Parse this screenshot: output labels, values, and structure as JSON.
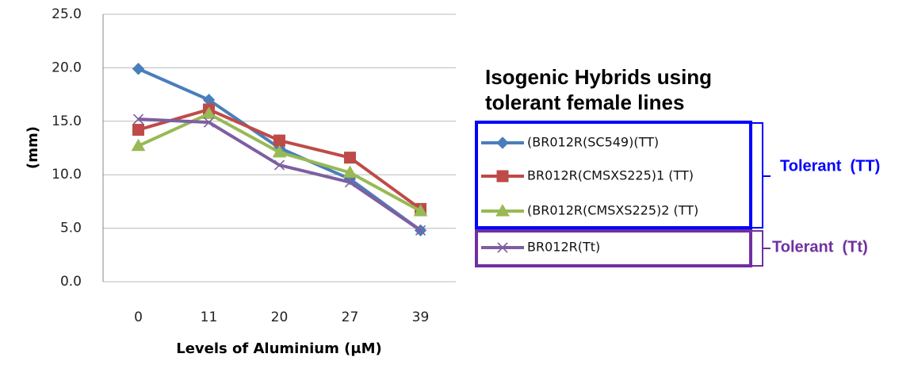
{
  "chart_data": {
    "type": "line",
    "y_label": "(mm)",
    "x_label": "Levels of Aluminium (μM)",
    "categories": [
      "0",
      "11",
      "20",
      "27",
      "39"
    ],
    "series": [
      {
        "name": "(BR012R(SC549)(TT)",
        "color": "#4a7ebb",
        "marker": "diamond",
        "values": [
          19.9,
          17.0,
          12.5,
          9.6,
          4.8
        ]
      },
      {
        "name": "BR012R(CMSXS225)1 (TT)",
        "color": "#be4b48",
        "marker": "square",
        "values": [
          14.2,
          16.1,
          13.2,
          11.6,
          6.8
        ]
      },
      {
        "name": "(BR012R(CMSXS225)2 (TT)",
        "color": "#98b954",
        "marker": "triangle",
        "values": [
          12.7,
          15.7,
          12.1,
          10.2,
          6.6
        ]
      },
      {
        "name": "BR012R(Tt)",
        "color": "#7d5fa0",
        "marker": "x",
        "values": [
          15.2,
          14.9,
          10.9,
          9.3,
          4.8
        ]
      }
    ],
    "ylim": [
      0,
      25
    ],
    "yticks": [
      {
        "value": 0,
        "label": "0.0"
      },
      {
        "value": 5,
        "label": "5.0"
      },
      {
        "value": 10,
        "label": "10.0"
      },
      {
        "value": 15,
        "label": "15.0"
      },
      {
        "value": 20,
        "label": "20.0"
      },
      {
        "value": 25,
        "label": "25.0"
      }
    ],
    "grid": true,
    "legend_title": [
      "Isogenic Hybrids using",
      "tolerant female lines"
    ],
    "annotations": [
      "Tolerant  (TT)",
      "Tolerant  (Tt)"
    ]
  }
}
